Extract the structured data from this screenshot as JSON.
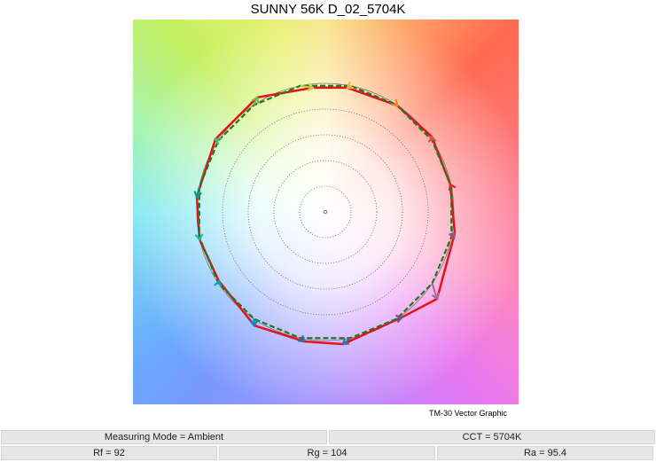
{
  "chart_data": {
    "type": "vector-graphic",
    "title": "SUNNY 56K D_02_5704K",
    "caption": "TM-30 Vector Graphic",
    "reference_radius": 1,
    "rings": [
      0.2,
      0.4,
      0.6,
      0.8
    ],
    "hue_bin_angles_deg": [
      11.25,
      33.75,
      56.25,
      78.75,
      101.25,
      123.75,
      146.25,
      168.75,
      191.25,
      213.75,
      236.25,
      258.75,
      281.25,
      303.75,
      326.25,
      348.75
    ],
    "test_points": [
      [
        0.972,
        0.214
      ],
      [
        0.828,
        0.586
      ],
      [
        0.559,
        0.828
      ],
      [
        0.172,
        0.966
      ],
      [
        -0.097,
        0.966
      ],
      [
        -0.531,
        0.89
      ],
      [
        -0.855,
        0.566
      ],
      [
        -1.0,
        0.117
      ],
      [
        -0.979,
        -0.214
      ],
      [
        -0.828,
        -0.538
      ],
      [
        -0.552,
        -0.883
      ],
      [
        -0.166,
        -1.007
      ],
      [
        0.138,
        -1.028
      ],
      [
        0.593,
        -0.821
      ],
      [
        0.869,
        -0.676
      ],
      [
        1.007,
        -0.166
      ]
    ],
    "colors": {
      "test": "#e8101a",
      "reference": "#1f7a1f",
      "bins": [
        "#e62828",
        "#e74b4b",
        "#fb812e",
        "#ffb529",
        "#cbca46",
        "#7eb94c",
        "#41c06d",
        "#009c7c",
        "#16bcb0",
        "#00a4bf",
        "#0085c3",
        "#3b62aa",
        "#4568ae",
        "#6a4e85",
        "#9d69a1",
        "#a74f81"
      ]
    }
  },
  "info": {
    "measuring_mode": "Measuring Mode = Ambient",
    "cct": "CCT = 5704K",
    "rf": "Rf = 92",
    "rg": "Rg = 104",
    "ra": "Ra = 95.4"
  }
}
